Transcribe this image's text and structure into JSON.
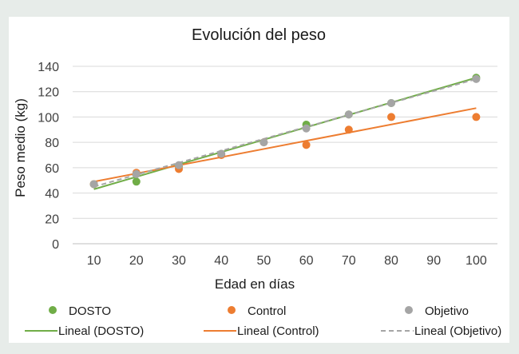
{
  "chart_data": {
    "type": "scatter",
    "title": "Evolución del peso",
    "xlabel": "Edad en días",
    "ylabel": "Peso medio (kg)",
    "xlim": [
      5,
      105
    ],
    "ylim": [
      0,
      140
    ],
    "x_ticks": [
      10,
      20,
      30,
      40,
      50,
      60,
      70,
      80,
      90,
      100
    ],
    "y_ticks": [
      0,
      20,
      40,
      60,
      80,
      100,
      120,
      140
    ],
    "grid": "horizontal",
    "legend_position": "bottom",
    "series": [
      {
        "name": "DOSTO",
        "color": "#70ad47",
        "x": [
          10,
          20,
          30,
          60,
          70,
          80,
          100
        ],
        "values": [
          47,
          49,
          61,
          94,
          102,
          111,
          131
        ]
      },
      {
        "name": "Control",
        "color": "#ed7d31",
        "x": [
          10,
          20,
          30,
          40,
          50,
          60,
          70,
          80,
          100
        ],
        "values": [
          47,
          56,
          59,
          70,
          80,
          78,
          90,
          100,
          100
        ]
      },
      {
        "name": "Objetivo",
        "color": "#a5a5a5",
        "x": [
          10,
          20,
          30,
          40,
          50,
          60,
          70,
          80,
          100
        ],
        "values": [
          47,
          55,
          62,
          71,
          80,
          91,
          102,
          111,
          130
        ]
      }
    ],
    "trendlines": [
      {
        "name": "Lineal (DOSTO)",
        "color": "#70ad47",
        "style": "solid",
        "x": [
          10,
          100
        ],
        "values": [
          43,
          131
        ]
      },
      {
        "name": "Lineal (Control)",
        "color": "#ed7d31",
        "style": "solid",
        "x": [
          10,
          100
        ],
        "values": [
          49,
          107
        ]
      },
      {
        "name": "Lineal (Objetivo)",
        "color": "#a5a5a5",
        "style": "dashed",
        "x": [
          10,
          100
        ],
        "values": [
          45,
          130
        ]
      }
    ]
  }
}
